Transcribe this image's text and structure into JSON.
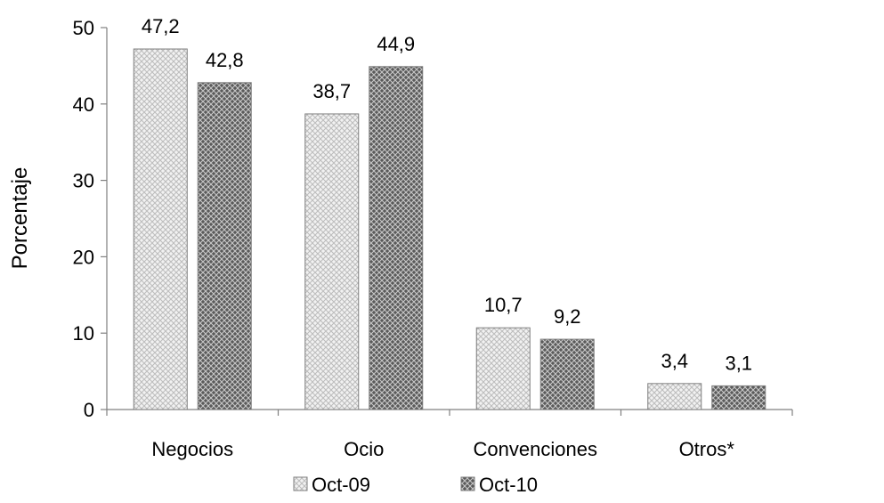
{
  "chart_data": {
    "type": "bar",
    "categories": [
      "Negocios",
      "Ocio",
      "Convenciones",
      "Otros*"
    ],
    "series": [
      {
        "name": "Oct-09",
        "values": [
          47.2,
          38.7,
          10.7,
          3.4
        ],
        "value_labels": [
          "47,2",
          "38,7",
          "10,7",
          "3,4"
        ],
        "color": "#e6e6e6",
        "pattern": "light-lattice"
      },
      {
        "name": "Oct-10",
        "values": [
          42.8,
          44.9,
          9.2,
          3.1
        ],
        "value_labels": [
          "42,8",
          "44,9",
          "9,2",
          "3,1"
        ],
        "color": "#8c8c8c",
        "pattern": "dark-lattice"
      }
    ],
    "ylabel": "Porcentaje",
    "xlabel": "",
    "ylim": [
      0,
      50
    ],
    "yticks": [
      0,
      10,
      20,
      30,
      40,
      50
    ],
    "grid": false,
    "legend": "bottom-center"
  }
}
